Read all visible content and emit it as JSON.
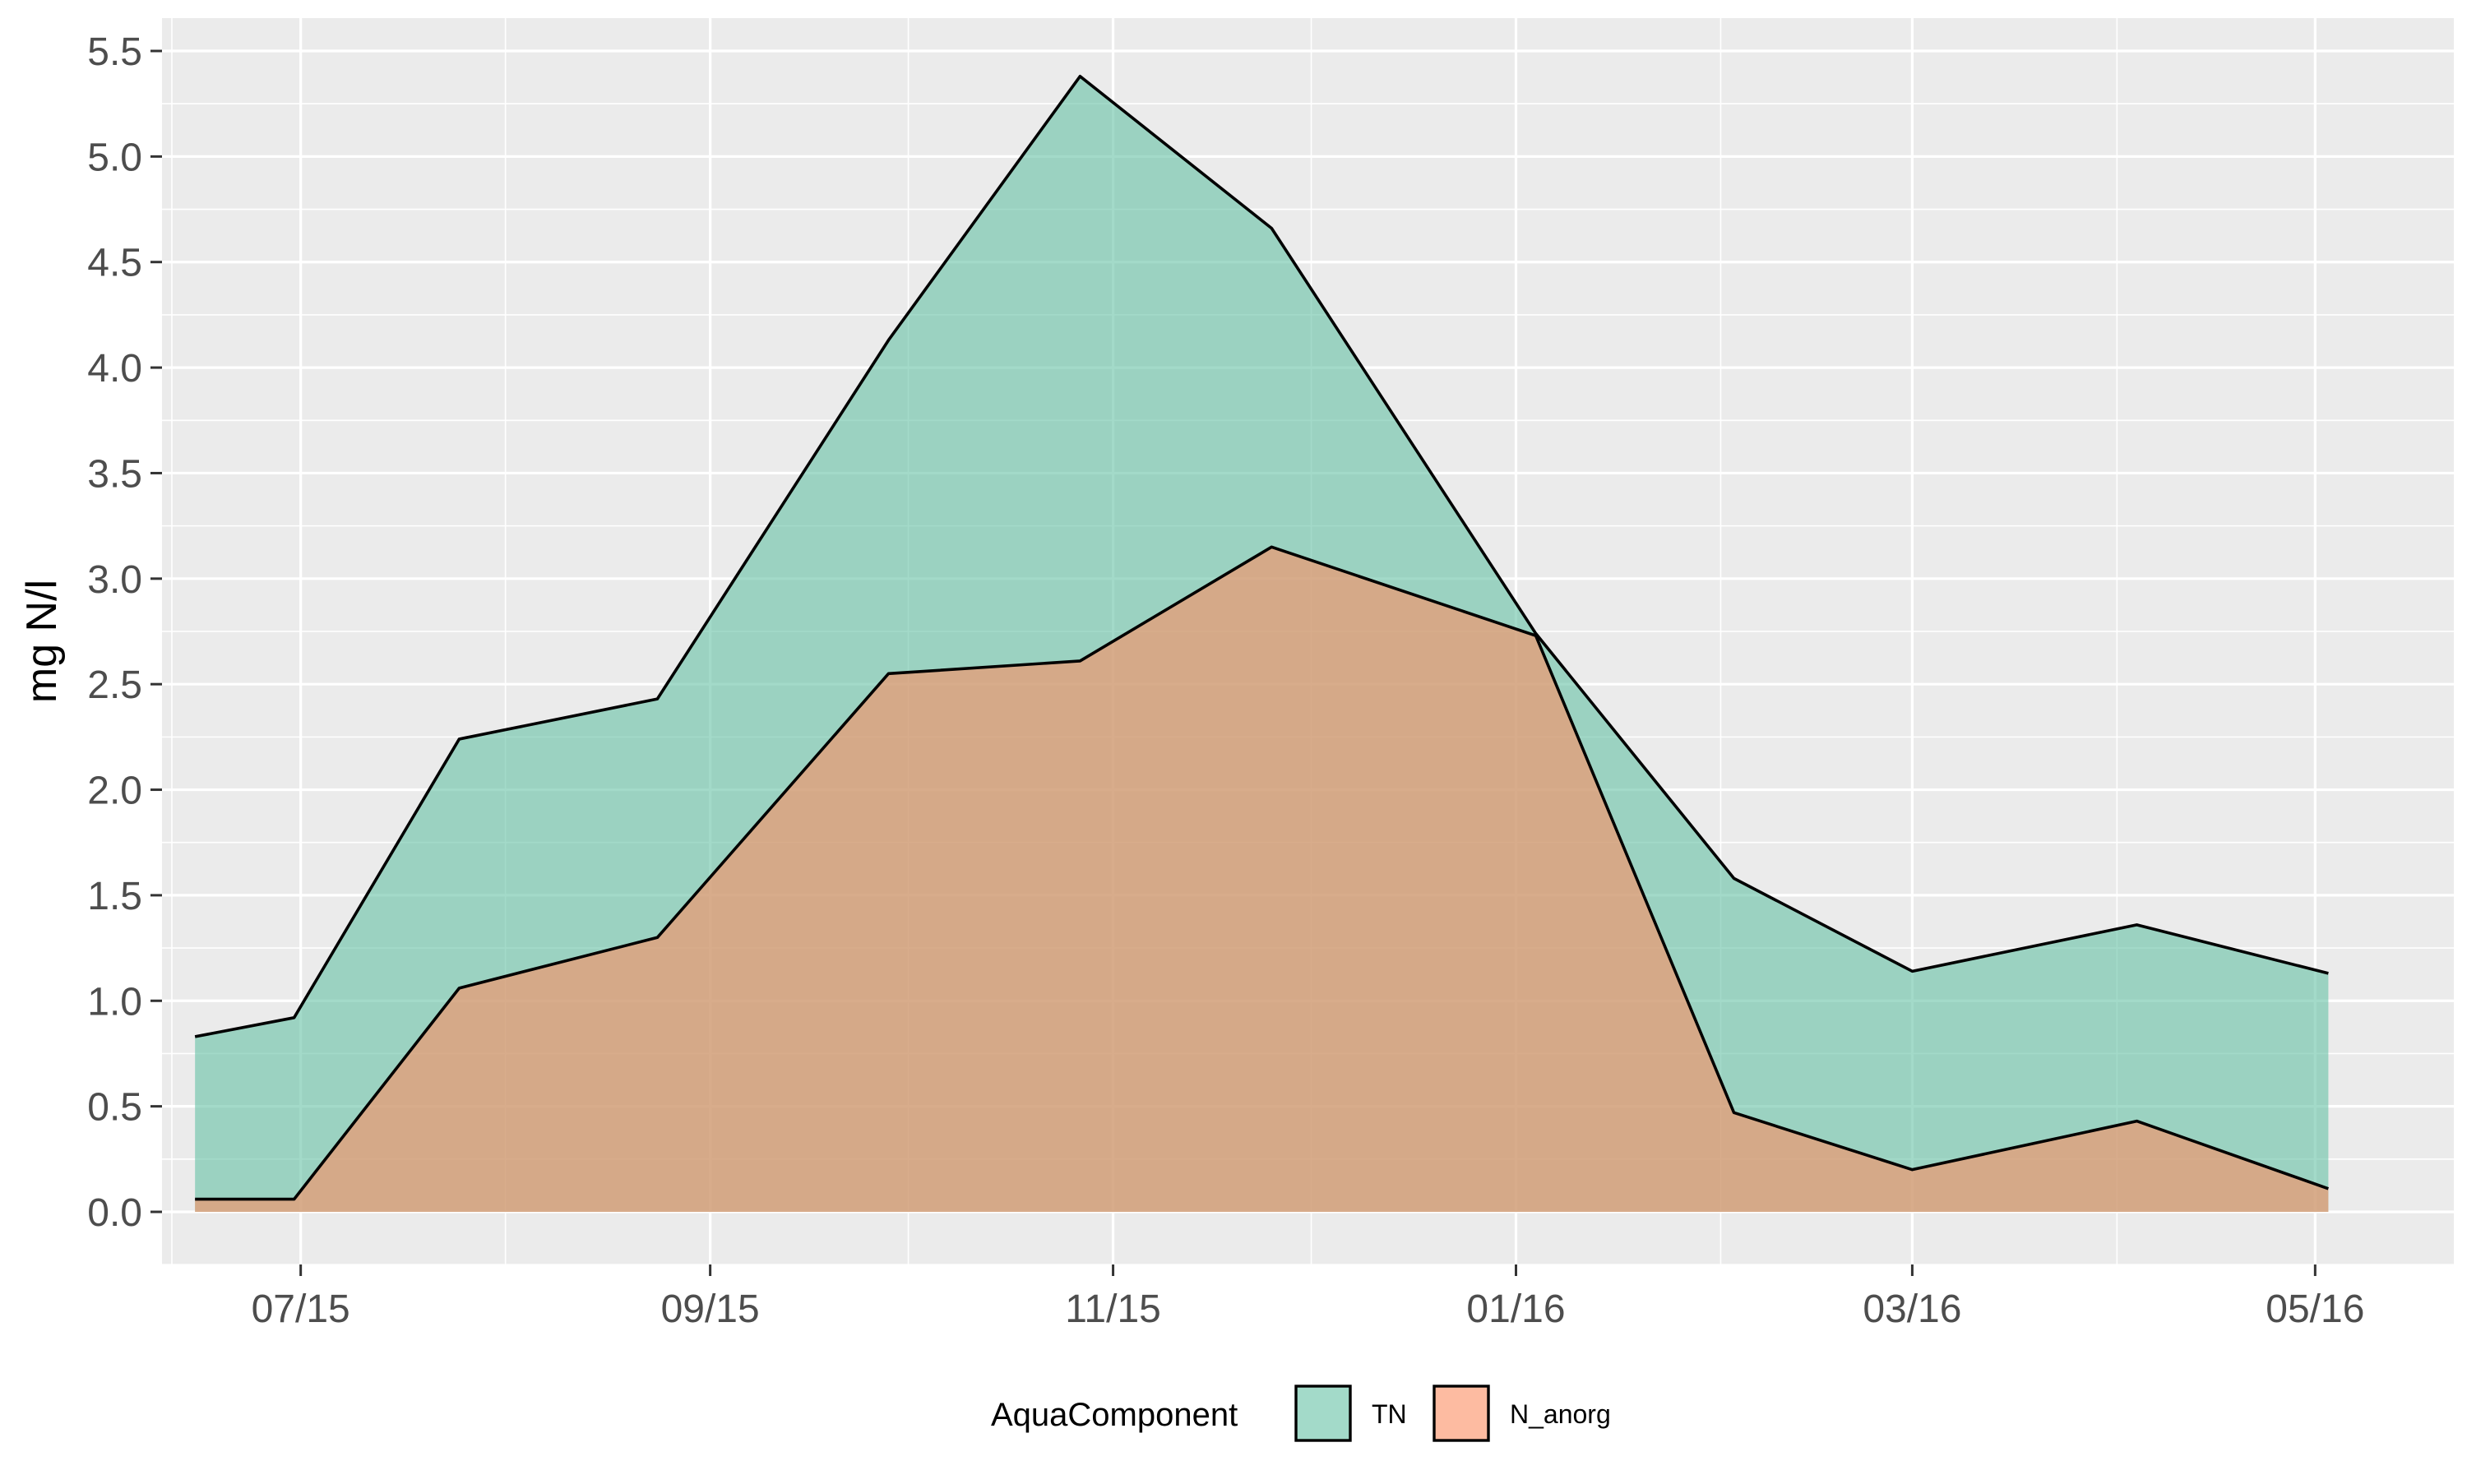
{
  "chart_data": {
    "type": "area",
    "title": "",
    "xlabel": "",
    "ylabel": "mg N/l",
    "ylim": [
      0,
      5.5
    ],
    "xlim": [
      "2015-06-10",
      "2016-05-22"
    ],
    "y_ticks": [
      "0.0",
      "0.5",
      "1.0",
      "1.5",
      "2.0",
      "2.5",
      "3.0",
      "3.5",
      "4.0",
      "4.5",
      "5.0",
      "5.5"
    ],
    "x_ticks": [
      {
        "date": "2015-07-01",
        "label": "07/15"
      },
      {
        "date": "2015-09-01",
        "label": "09/15"
      },
      {
        "date": "2015-11-01",
        "label": "11/15"
      },
      {
        "date": "2016-01-01",
        "label": "01/16"
      },
      {
        "date": "2016-03-01",
        "label": "03/16"
      },
      {
        "date": "2016-05-01",
        "label": "05/16"
      }
    ],
    "x_minor_ticks": [
      "2015-08-01",
      "2015-10-01",
      "2015-12-01",
      "2016-02-01",
      "2016-04-01"
    ],
    "grid": true,
    "legend": {
      "title": "AquaComponent",
      "position": "bottom"
    },
    "x": [
      "2015-06-15",
      "2015-06-30",
      "2015-07-25",
      "2015-08-24",
      "2015-09-28",
      "2015-10-27",
      "2015-11-25",
      "2016-01-04",
      "2016-02-03",
      "2016-03-01",
      "2016-04-04",
      "2016-05-03"
    ],
    "series": [
      {
        "name": "TN",
        "color": "#66C2A5",
        "values": [
          0.83,
          0.92,
          2.24,
          2.43,
          4.13,
          5.38,
          4.66,
          2.74,
          1.58,
          1.14,
          1.36,
          1.13
        ]
      },
      {
        "name": "N_anorg",
        "color": "#FC8D62",
        "values": [
          0.06,
          0.06,
          1.06,
          1.3,
          2.55,
          2.61,
          3.15,
          2.73,
          0.47,
          0.2,
          0.43,
          0.11
        ]
      }
    ]
  }
}
